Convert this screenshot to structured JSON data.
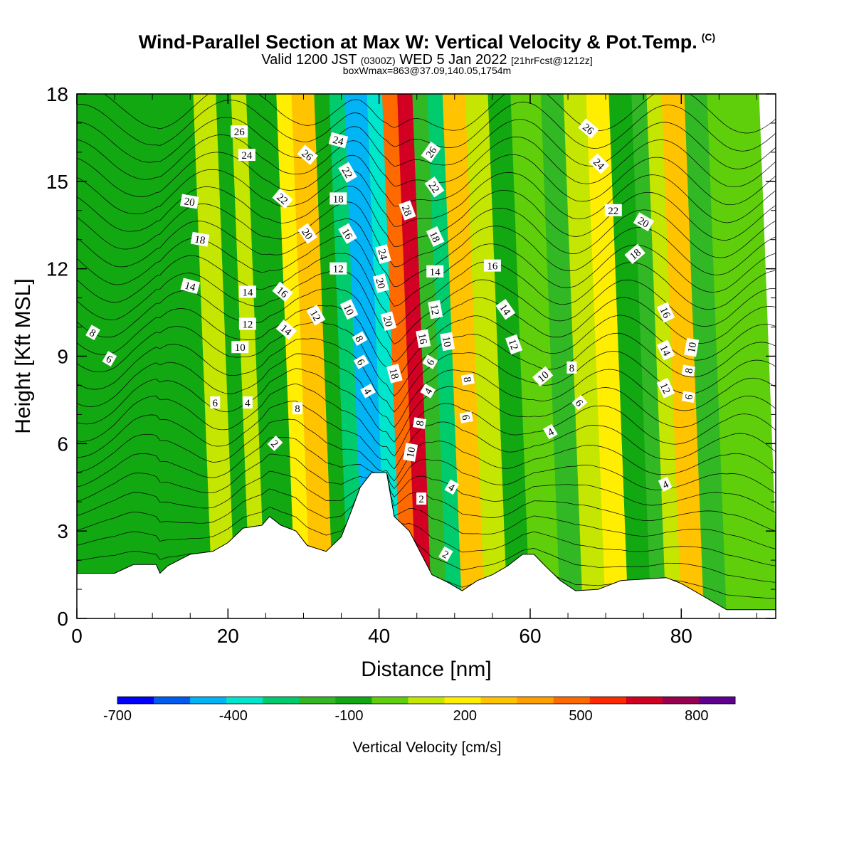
{
  "title": "Wind-Parallel Section at Max W: Vertical Velocity & Pot.Temp.",
  "copyright": "(C)",
  "subtitle_main": "Valid 1200 JST",
  "subtitle_utc": "(0300Z)",
  "subtitle_date": "WED 5 Jan 2022",
  "subtitle_run": "[21hrFcst@1212z]",
  "subtitle2": "boxWmax=863@37.09,140.05,1754m",
  "chart_data": {
    "type": "heatmap",
    "xlabel": "Distance [nm]",
    "ylabel": "Height [Kft MSL]",
    "xlim": [
      0,
      92.5
    ],
    "ylim": [
      0,
      18
    ],
    "x_ticks": [
      0,
      20,
      40,
      60,
      80
    ],
    "y_ticks": [
      0,
      3,
      6,
      9,
      12,
      15,
      18
    ],
    "colorbar": {
      "label": "Vertical Velocity [cm/s]",
      "min": -700,
      "max": 900,
      "tick_values": [
        -700,
        -400,
        -100,
        200,
        500,
        800
      ],
      "colors": [
        "#0000ff",
        "#005cf0",
        "#00b4f5",
        "#00e6cc",
        "#00cc6e",
        "#33b825",
        "#12a812",
        "#5ecf0a",
        "#c4e600",
        "#ffee00",
        "#ffc300",
        "#ff9f00",
        "#ff6a00",
        "#ff2a00",
        "#d20022",
        "#990050",
        "#5f0090"
      ]
    },
    "velocity_bands": [
      {
        "x": 0,
        "w": 18,
        "v": -50
      },
      {
        "x": 18,
        "w": 3,
        "v": 80
      },
      {
        "x": 21,
        "w": 2,
        "v": -120
      },
      {
        "x": 23,
        "w": 2,
        "v": 60
      },
      {
        "x": 25,
        "w": 4,
        "v": -130
      },
      {
        "x": 29,
        "w": 2,
        "v": 180
      },
      {
        "x": 31,
        "w": 3,
        "v": 300
      },
      {
        "x": 34,
        "w": 2,
        "v": -50
      },
      {
        "x": 36,
        "w": 2,
        "v": -320
      },
      {
        "x": 38,
        "w": 3,
        "v": -460
      },
      {
        "x": 41,
        "w": 2,
        "v": -380
      },
      {
        "x": 43,
        "w": 2,
        "v": 450
      },
      {
        "x": 45,
        "w": 2,
        "v": 650
      },
      {
        "x": 47,
        "w": 2,
        "v": -150
      },
      {
        "x": 49,
        "w": 2,
        "v": -320
      },
      {
        "x": 51,
        "w": 3,
        "v": 330
      },
      {
        "x": 54,
        "w": 3,
        "v": 120
      },
      {
        "x": 57,
        "w": 3,
        "v": -90
      },
      {
        "x": 60,
        "w": 4,
        "v": 40
      },
      {
        "x": 64,
        "w": 3,
        "v": -150
      },
      {
        "x": 67,
        "w": 3,
        "v": 60
      },
      {
        "x": 70,
        "w": 3,
        "v": 170
      },
      {
        "x": 73,
        "w": 3,
        "v": -70
      },
      {
        "x": 76,
        "w": 2,
        "v": -180
      },
      {
        "x": 78,
        "w": 2,
        "v": 90
      },
      {
        "x": 80,
        "w": 3,
        "v": 280
      },
      {
        "x": 83,
        "w": 3,
        "v": -200
      },
      {
        "x": 86,
        "w": 6.5,
        "v": -40
      }
    ],
    "terrain": [
      [
        0,
        1.55
      ],
      [
        5,
        1.55
      ],
      [
        7.5,
        1.85
      ],
      [
        10.5,
        1.85
      ],
      [
        11,
        1.55
      ],
      [
        12,
        1.8
      ],
      [
        15,
        2.2
      ],
      [
        18,
        2.3
      ],
      [
        20,
        2.6
      ],
      [
        22,
        3.1
      ],
      [
        24.5,
        3.2
      ],
      [
        25.5,
        3.5
      ],
      [
        27,
        3.2
      ],
      [
        29,
        3.0
      ],
      [
        30.5,
        2.5
      ],
      [
        33,
        2.3
      ],
      [
        35,
        2.8
      ],
      [
        36.5,
        3.8
      ],
      [
        37.5,
        4.5
      ],
      [
        39,
        5.0
      ],
      [
        41,
        5.0
      ],
      [
        42,
        3.5
      ],
      [
        44,
        3.0
      ],
      [
        45,
        2.5
      ],
      [
        47,
        1.5
      ],
      [
        49,
        1.25
      ],
      [
        51,
        0.95
      ],
      [
        53,
        1.3
      ],
      [
        55,
        1.5
      ],
      [
        57,
        1.8
      ],
      [
        59,
        2.2
      ],
      [
        60.5,
        2.2
      ],
      [
        62,
        1.8
      ],
      [
        64,
        1.3
      ],
      [
        66,
        0.95
      ],
      [
        69,
        1.0
      ],
      [
        72,
        1.3
      ],
      [
        78,
        1.4
      ],
      [
        80,
        1.2
      ],
      [
        82,
        0.9
      ],
      [
        84,
        0.6
      ],
      [
        86,
        0.3
      ],
      [
        92.5,
        0.3
      ]
    ],
    "contour_labels": [
      {
        "x": 21.5,
        "y": 16.7,
        "t": "26",
        "r": 0
      },
      {
        "x": 22.5,
        "y": 15.9,
        "t": "24",
        "r": 0
      },
      {
        "x": 14.9,
        "y": 14.3,
        "t": "20",
        "r": 10
      },
      {
        "x": 16.3,
        "y": 13.0,
        "t": "18",
        "r": 10
      },
      {
        "x": 15.0,
        "y": 11.4,
        "t": "14",
        "r": 15
      },
      {
        "x": 22.6,
        "y": 11.2,
        "t": "14",
        "r": 0
      },
      {
        "x": 22.6,
        "y": 10.1,
        "t": "12",
        "r": 0
      },
      {
        "x": 21.6,
        "y": 9.3,
        "t": "10",
        "r": 0
      },
      {
        "x": 2.1,
        "y": 9.8,
        "t": "8",
        "r": 30
      },
      {
        "x": 4.3,
        "y": 8.9,
        "t": "6",
        "r": 30
      },
      {
        "x": 18.3,
        "y": 7.4,
        "t": "6",
        "r": 0
      },
      {
        "x": 22.6,
        "y": 7.4,
        "t": "4",
        "r": 0
      },
      {
        "x": 26.2,
        "y": 6.0,
        "t": "2",
        "r": 45
      },
      {
        "x": 27.2,
        "y": 14.4,
        "t": "22",
        "r": 40
      },
      {
        "x": 30.5,
        "y": 15.9,
        "t": "26",
        "r": 40
      },
      {
        "x": 34.6,
        "y": 16.4,
        "t": "24",
        "r": 15
      },
      {
        "x": 35.8,
        "y": 15.3,
        "t": "22",
        "r": 60
      },
      {
        "x": 34.6,
        "y": 14.4,
        "t": "18",
        "r": 0
      },
      {
        "x": 30.5,
        "y": 13.2,
        "t": "20",
        "r": 55
      },
      {
        "x": 35.8,
        "y": 13.2,
        "t": "16",
        "r": 60
      },
      {
        "x": 34.6,
        "y": 12.0,
        "t": "12",
        "r": 0
      },
      {
        "x": 27.2,
        "y": 11.2,
        "t": "16",
        "r": 40
      },
      {
        "x": 31.6,
        "y": 10.4,
        "t": "12",
        "r": 60
      },
      {
        "x": 36.0,
        "y": 10.6,
        "t": "10",
        "r": 65
      },
      {
        "x": 27.7,
        "y": 9.9,
        "t": "14",
        "r": 40
      },
      {
        "x": 37.4,
        "y": 9.6,
        "t": "8",
        "r": 60
      },
      {
        "x": 37.6,
        "y": 8.8,
        "t": "6",
        "r": 60
      },
      {
        "x": 38.5,
        "y": 7.8,
        "t": "4",
        "r": 60
      },
      {
        "x": 29.2,
        "y": 7.2,
        "t": "8",
        "r": 0
      },
      {
        "x": 40.5,
        "y": 12.5,
        "t": "24",
        "r": 75
      },
      {
        "x": 40.2,
        "y": 11.5,
        "t": "20",
        "r": 75
      },
      {
        "x": 41.2,
        "y": 10.2,
        "t": "20",
        "r": 75
      },
      {
        "x": 42.0,
        "y": 8.4,
        "t": "18",
        "r": 75
      },
      {
        "x": 43.7,
        "y": 14.0,
        "t": "28",
        "r": 70
      },
      {
        "x": 46.9,
        "y": 16.0,
        "t": "26",
        "r": -55
      },
      {
        "x": 47.3,
        "y": 14.8,
        "t": "22",
        "r": 55
      },
      {
        "x": 47.4,
        "y": 13.1,
        "t": "18",
        "r": 65
      },
      {
        "x": 47.4,
        "y": 11.9,
        "t": "14",
        "r": 0
      },
      {
        "x": 47.4,
        "y": 10.6,
        "t": "12",
        "r": 80
      },
      {
        "x": 49.0,
        "y": 9.5,
        "t": "10",
        "r": 80
      },
      {
        "x": 45.8,
        "y": 9.6,
        "t": "16",
        "r": 80
      },
      {
        "x": 46.8,
        "y": 8.8,
        "t": "6",
        "r": -60
      },
      {
        "x": 46.5,
        "y": 7.8,
        "t": "4",
        "r": -60
      },
      {
        "x": 45.4,
        "y": 6.7,
        "t": "8",
        "r": -80
      },
      {
        "x": 44.2,
        "y": 5.7,
        "t": "10",
        "r": -80
      },
      {
        "x": 45.6,
        "y": 4.1,
        "t": "2",
        "r": 0
      },
      {
        "x": 49.6,
        "y": 4.5,
        "t": "4",
        "r": 30
      },
      {
        "x": 48.8,
        "y": 2.2,
        "t": "2",
        "r": 30
      },
      {
        "x": 51.7,
        "y": 8.2,
        "t": "8",
        "r": 80
      },
      {
        "x": 51.5,
        "y": 6.9,
        "t": "6",
        "r": 80
      },
      {
        "x": 55.0,
        "y": 12.1,
        "t": "16",
        "r": 0
      },
      {
        "x": 56.7,
        "y": 10.6,
        "t": "14",
        "r": 55
      },
      {
        "x": 57.8,
        "y": 9.4,
        "t": "12",
        "r": 70
      },
      {
        "x": 61.7,
        "y": 8.3,
        "t": "10",
        "r": -40
      },
      {
        "x": 65.5,
        "y": 8.6,
        "t": "8",
        "r": 0
      },
      {
        "x": 66.5,
        "y": 7.4,
        "t": "6",
        "r": 50
      },
      {
        "x": 62.7,
        "y": 6.4,
        "t": "4",
        "r": -30
      },
      {
        "x": 67.7,
        "y": 16.8,
        "t": "26",
        "r": 40
      },
      {
        "x": 69.1,
        "y": 15.6,
        "t": "24",
        "r": 45
      },
      {
        "x": 71.0,
        "y": 14.0,
        "t": "22",
        "r": 0
      },
      {
        "x": 75.0,
        "y": 13.6,
        "t": "20",
        "r": 30
      },
      {
        "x": 73.9,
        "y": 12.5,
        "t": "18",
        "r": -40
      },
      {
        "x": 77.9,
        "y": 10.5,
        "t": "16",
        "r": 65
      },
      {
        "x": 77.9,
        "y": 9.2,
        "t": "14",
        "r": 65
      },
      {
        "x": 77.9,
        "y": 7.9,
        "t": "12",
        "r": 65
      },
      {
        "x": 81.4,
        "y": 9.3,
        "t": "10",
        "r": -80
      },
      {
        "x": 81.0,
        "y": 8.5,
        "t": "8",
        "r": -80
      },
      {
        "x": 81.0,
        "y": 7.6,
        "t": "6",
        "r": -80
      },
      {
        "x": 77.9,
        "y": 4.6,
        "t": "4",
        "r": -25
      }
    ]
  }
}
